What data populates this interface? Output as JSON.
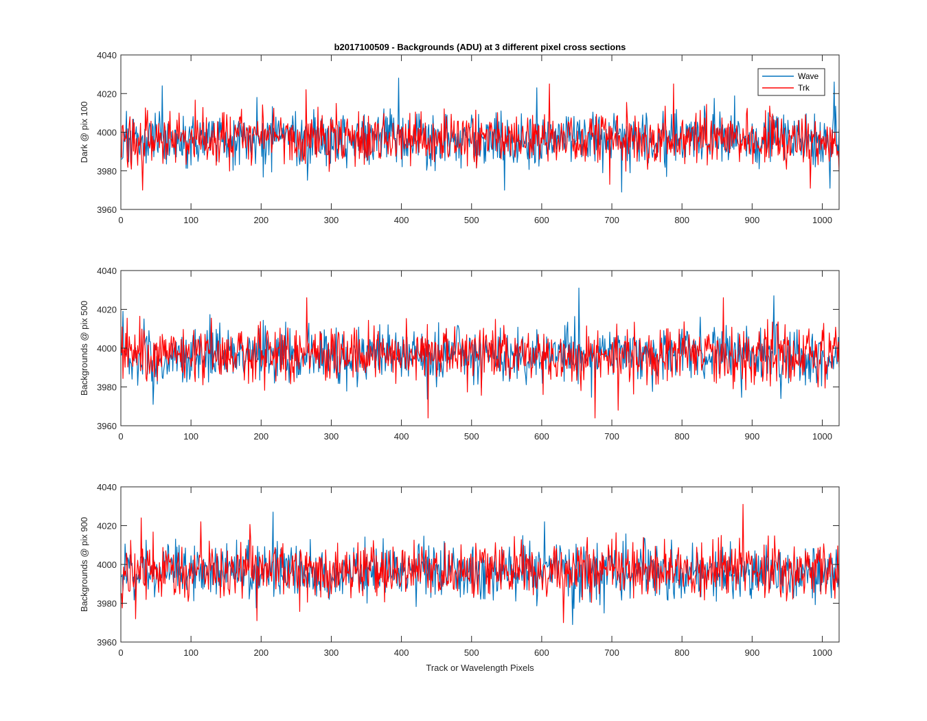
{
  "chart_data": {
    "type": "line",
    "title": "b2017100509 - Backgrounds (ADU) at 3 different pixel cross sections",
    "xlabel": "Track or Wavelength Pixels",
    "xlim": [
      0,
      1024
    ],
    "xticks": [
      0,
      100,
      200,
      300,
      400,
      500,
      600,
      700,
      800,
      900,
      1000
    ],
    "colors": {
      "Wave": "#0072BD",
      "Trk": "#FF0000"
    },
    "legend": {
      "entries": [
        "Wave",
        "Trk"
      ],
      "location": "top-right of first panel"
    },
    "panels": [
      {
        "ylabel": "Dark @ pix 100",
        "ylim": [
          3960,
          4040
        ],
        "yticks": [
          3960,
          3980,
          4000,
          4020,
          4040
        ],
        "series": [
          {
            "name": "Wave",
            "n_points": 1024,
            "mean": 3996,
            "sd": 7,
            "peaks": [
              [
                58,
                4024
              ],
              [
                395,
                4028
              ],
              [
                592,
                4023
              ],
              [
                1016,
                4026
              ]
            ],
            "troughs": [
              [
                546,
                3970
              ],
              [
                713,
                3969
              ],
              [
                1010,
                3971
              ]
            ]
          },
          {
            "name": "Trk",
            "n_points": 1024,
            "mean": 3997,
            "sd": 7,
            "peaks": [
              [
                263,
                4022
              ],
              [
                610,
                4025
              ],
              [
                787,
                4025
              ]
            ],
            "troughs": [
              [
                30,
                3970
              ],
              [
                696,
                3973
              ],
              [
                982,
                3971
              ]
            ]
          }
        ]
      },
      {
        "ylabel": "Backgrounds @ pix 500",
        "ylim": [
          3960,
          4040
        ],
        "yticks": [
          3960,
          3980,
          4000,
          4020,
          4040
        ],
        "series": [
          {
            "name": "Wave",
            "n_points": 1024,
            "mean": 3996,
            "sd": 7,
            "peaks": [
              [
                2,
                4019
              ],
              [
                652,
                4031
              ],
              [
                930,
                4027
              ]
            ],
            "troughs": [
              [
                45,
                3971
              ],
              [
                940,
                3974
              ]
            ]
          },
          {
            "name": "Trk",
            "n_points": 1024,
            "mean": 3997,
            "sd": 7,
            "peaks": [
              [
                264,
                4026
              ],
              [
                858,
                4026
              ]
            ],
            "troughs": [
              [
                437,
                3964
              ],
              [
                675,
                3964
              ],
              [
                708,
                3968
              ]
            ]
          }
        ]
      },
      {
        "ylabel": "Backgrounds @ pix 900",
        "ylim": [
          3960,
          4040
        ],
        "yticks": [
          3960,
          3980,
          4000,
          4020,
          4040
        ],
        "series": [
          {
            "name": "Wave",
            "n_points": 1024,
            "mean": 3996,
            "sd": 7,
            "peaks": [
              [
                216,
                4027
              ],
              [
                603,
                4022
              ]
            ],
            "troughs": [
              [
                643,
                3969
              ]
            ]
          },
          {
            "name": "Trk",
            "n_points": 1024,
            "mean": 3997,
            "sd": 7,
            "peaks": [
              [
                28,
                4024
              ],
              [
                113,
                4022
              ],
              [
                886,
                4031
              ]
            ],
            "troughs": [
              [
                20,
                3972
              ],
              [
                193,
                3971
              ],
              [
                630,
                3970
              ]
            ]
          }
        ]
      }
    ]
  }
}
